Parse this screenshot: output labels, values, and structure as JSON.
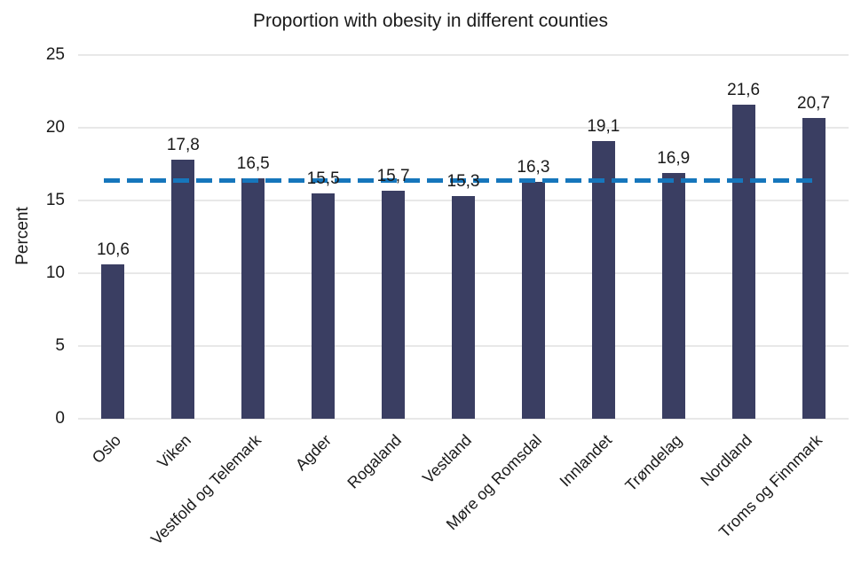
{
  "chart_data": {
    "type": "bar",
    "title": "Proportion with obesity in different counties",
    "ylabel": "Percent",
    "xlabel": "",
    "categories": [
      "Oslo",
      "Viken",
      "Vestfold og Telemark",
      "Agder",
      "Rogaland",
      "Vestland",
      "Møre og Romsdal",
      "Innlandet",
      "Trøndelag",
      "Nordland",
      "Troms og Finnmark"
    ],
    "values": [
      10.6,
      17.8,
      16.5,
      15.5,
      15.7,
      15.3,
      16.3,
      19.1,
      16.9,
      21.6,
      20.7
    ],
    "value_labels": [
      "10,6",
      "17,8",
      "16,5",
      "15,5",
      "15,7",
      "15,3",
      "16,3",
      "19,1",
      "16,9",
      "21,6",
      "20,7"
    ],
    "ylim": [
      0,
      25
    ],
    "yticks": [
      0,
      5,
      10,
      15,
      20,
      25
    ],
    "grid": "horizontal",
    "legend": "none",
    "reference_line": {
      "value": 16.4,
      "style": "dashed"
    },
    "colors": {
      "bar": "#3a3e62",
      "reference_line": "#1676bc",
      "gridline": "#e8e8e8",
      "text": "#1a1a1a"
    }
  }
}
